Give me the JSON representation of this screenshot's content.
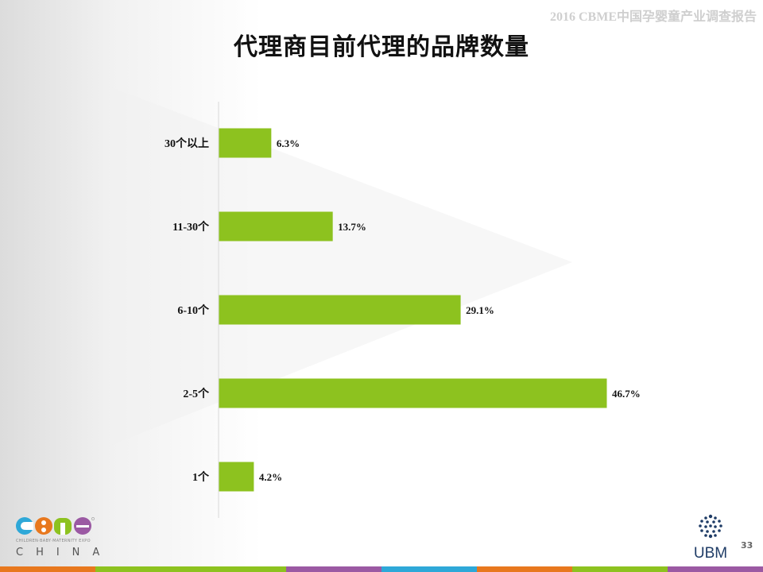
{
  "header": {
    "text": "2016 CBME中国孕婴童产业调查报告"
  },
  "chart_data": {
    "type": "bar",
    "orientation": "horizontal",
    "title": "代理商目前代理的品牌数量",
    "categories": [
      "30个以上",
      "11-30个",
      "6-10个",
      "2-5个",
      "1个"
    ],
    "values": [
      6.3,
      13.7,
      29.1,
      46.7,
      4.2
    ],
    "value_labels": [
      "6.3%",
      "13.7%",
      "29.1%",
      "46.7%",
      "4.2%"
    ],
    "unit": "%",
    "xlim": [
      0,
      50
    ],
    "bar_color": "#8dc21f",
    "grid": false,
    "legend": "none"
  },
  "logos": {
    "cbme": {
      "mark": "CBME",
      "sub": "CHILDREN·BABY·MATERNITY EXPO",
      "country": "CHINA"
    },
    "ubm": {
      "text": "UBM",
      "icon": "ubm-dots-icon",
      "color": "#1f3c66"
    }
  },
  "page_number": "33",
  "footer_colors": [
    "#e8781e",
    "#8dc21f",
    "#8dc21f",
    "#9b59a3",
    "#2ea8d8",
    "#e8781e",
    "#8dc21f",
    "#9b59a3"
  ],
  "colors": {
    "accent": "#8dc21f",
    "title": "#111111"
  }
}
